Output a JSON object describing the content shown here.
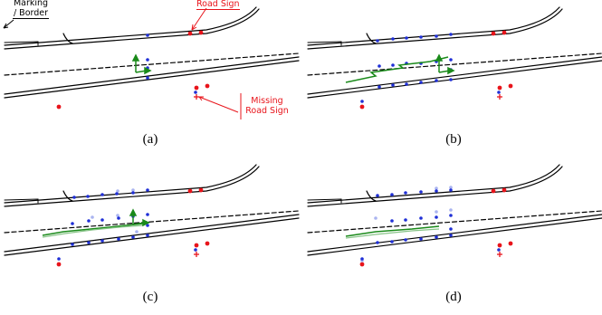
{
  "panels": [
    {
      "id": "a",
      "caption": "(a)"
    },
    {
      "id": "b",
      "caption": "(b)"
    },
    {
      "id": "c",
      "caption": "(c)"
    },
    {
      "id": "d",
      "caption": "(d)"
    }
  ],
  "annotations": {
    "marking_border": "Marking\n/ Border",
    "road_sign": "Road Sign",
    "missing_road_sign": "Missing\nRoad Sign"
  },
  "colors": {
    "road_line": "#000000",
    "detection": "#1f2fd6",
    "detection_faded": "#aab4f0",
    "road_sign": "#e8141b",
    "trajectory": "#1a8a1a",
    "trajectory_faded": "#88c488"
  }
}
